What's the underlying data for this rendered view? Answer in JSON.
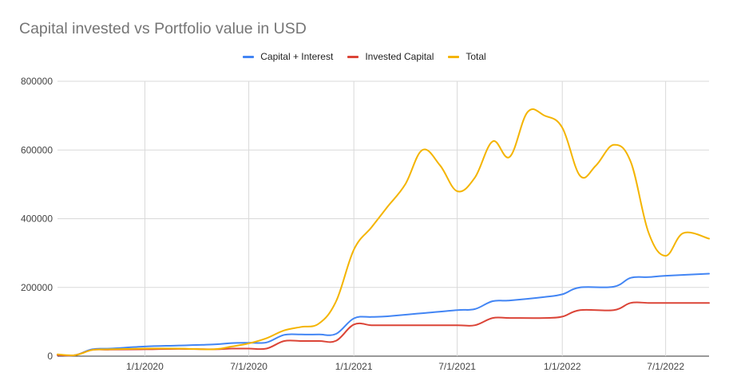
{
  "chart_data": {
    "type": "line",
    "title": "Capital invested vs Portfolio value in USD",
    "xlabel": "",
    "ylabel": "",
    "ylim": [
      0,
      800000
    ],
    "yticks": [
      "0",
      "200000",
      "400000",
      "600000",
      "800000"
    ],
    "xticks": [
      {
        "label": "1/1/2020",
        "date": "2020-01-01"
      },
      {
        "label": "7/1/2020",
        "date": "2020-07-01"
      },
      {
        "label": "1/1/2021",
        "date": "2021-01-01"
      },
      {
        "label": "7/1/2021",
        "date": "2021-07-01"
      },
      {
        "label": "1/1/2022",
        "date": "2022-01-01"
      },
      {
        "label": "7/1/2022",
        "date": "2022-07-01"
      }
    ],
    "xlim": [
      "2019-08-01",
      "2022-09-15"
    ],
    "grid": true,
    "legend_position": "top",
    "series": [
      {
        "name": "Capital + Interest",
        "color": "#4285f4",
        "points": [
          [
            "2019-08-01",
            3000
          ],
          [
            "2019-09-01",
            3000
          ],
          [
            "2019-10-01",
            20000
          ],
          [
            "2019-11-01",
            22000
          ],
          [
            "2020-01-01",
            28000
          ],
          [
            "2020-03-01",
            31000
          ],
          [
            "2020-05-01",
            34000
          ],
          [
            "2020-06-01",
            38000
          ],
          [
            "2020-07-01",
            39000
          ],
          [
            "2020-08-01",
            40000
          ],
          [
            "2020-09-01",
            62000
          ],
          [
            "2020-10-01",
            63000
          ],
          [
            "2020-11-01",
            63000
          ],
          [
            "2020-12-01",
            65000
          ],
          [
            "2021-01-01",
            110000
          ],
          [
            "2021-02-01",
            114000
          ],
          [
            "2021-03-01",
            116000
          ],
          [
            "2021-05-01",
            125000
          ],
          [
            "2021-07-01",
            134000
          ],
          [
            "2021-08-01",
            137000
          ],
          [
            "2021-09-01",
            160000
          ],
          [
            "2021-10-01",
            162000
          ],
          [
            "2021-12-01",
            172000
          ],
          [
            "2022-01-01",
            180000
          ],
          [
            "2022-02-01",
            200000
          ],
          [
            "2022-04-01",
            202000
          ],
          [
            "2022-05-01",
            228000
          ],
          [
            "2022-06-01",
            230000
          ],
          [
            "2022-07-01",
            234000
          ],
          [
            "2022-09-15",
            240000
          ]
        ]
      },
      {
        "name": "Invested Capital",
        "color": "#db4437",
        "points": [
          [
            "2019-08-01",
            3000
          ],
          [
            "2019-09-01",
            3000
          ],
          [
            "2019-10-01",
            18000
          ],
          [
            "2019-11-01",
            19000
          ],
          [
            "2020-01-01",
            20000
          ],
          [
            "2020-03-01",
            21000
          ],
          [
            "2020-05-01",
            20000
          ],
          [
            "2020-06-01",
            22000
          ],
          [
            "2020-07-01",
            22000
          ],
          [
            "2020-08-01",
            22000
          ],
          [
            "2020-09-01",
            44000
          ],
          [
            "2020-10-01",
            44000
          ],
          [
            "2020-11-01",
            44000
          ],
          [
            "2020-12-01",
            45000
          ],
          [
            "2021-01-01",
            92000
          ],
          [
            "2021-02-01",
            90000
          ],
          [
            "2021-03-01",
            90000
          ],
          [
            "2021-05-01",
            90000
          ],
          [
            "2021-07-01",
            90000
          ],
          [
            "2021-08-01",
            90000
          ],
          [
            "2021-09-01",
            111000
          ],
          [
            "2021-10-01",
            111000
          ],
          [
            "2021-12-01",
            111000
          ],
          [
            "2022-01-01",
            115000
          ],
          [
            "2022-02-01",
            134000
          ],
          [
            "2022-04-01",
            134000
          ],
          [
            "2022-05-01",
            155000
          ],
          [
            "2022-06-01",
            155000
          ],
          [
            "2022-07-01",
            155000
          ],
          [
            "2022-09-15",
            155000
          ]
        ]
      },
      {
        "name": "Total",
        "color": "#f4b400",
        "points": [
          [
            "2019-08-01",
            5000
          ],
          [
            "2019-09-01",
            3000
          ],
          [
            "2019-10-01",
            18000
          ],
          [
            "2019-11-01",
            20000
          ],
          [
            "2020-01-01",
            22000
          ],
          [
            "2020-03-01",
            22000
          ],
          [
            "2020-05-01",
            20000
          ],
          [
            "2020-06-01",
            28000
          ],
          [
            "2020-07-01",
            37000
          ],
          [
            "2020-08-01",
            52000
          ],
          [
            "2020-09-01",
            75000
          ],
          [
            "2020-10-01",
            85000
          ],
          [
            "2020-11-01",
            95000
          ],
          [
            "2020-12-01",
            160000
          ],
          [
            "2021-01-01",
            310000
          ],
          [
            "2021-02-01",
            375000
          ],
          [
            "2021-03-01",
            435000
          ],
          [
            "2021-04-01",
            500000
          ],
          [
            "2021-05-01",
            600000
          ],
          [
            "2021-06-01",
            555000
          ],
          [
            "2021-07-01",
            480000
          ],
          [
            "2021-08-01",
            520000
          ],
          [
            "2021-09-01",
            625000
          ],
          [
            "2021-10-01",
            580000
          ],
          [
            "2021-11-01",
            710000
          ],
          [
            "2021-12-01",
            700000
          ],
          [
            "2022-01-01",
            665000
          ],
          [
            "2022-02-01",
            525000
          ],
          [
            "2022-03-01",
            555000
          ],
          [
            "2022-04-01",
            615000
          ],
          [
            "2022-05-01",
            565000
          ],
          [
            "2022-06-01",
            360000
          ],
          [
            "2022-07-01",
            292000
          ],
          [
            "2022-08-01",
            358000
          ],
          [
            "2022-09-15",
            342000
          ]
        ]
      }
    ]
  }
}
